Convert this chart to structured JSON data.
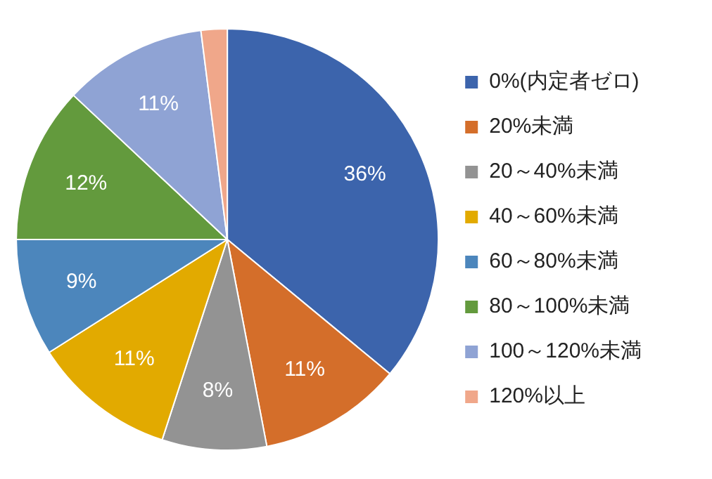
{
  "chart_data": {
    "type": "pie",
    "categories": [
      "0%(内定者ゼロ)",
      "20%未満",
      "20～40%未満",
      "40～60%未満",
      "60～80%未満",
      "80～100%未満",
      "100～120%未満",
      "120%以上"
    ],
    "values": [
      36,
      11,
      8,
      11,
      9,
      12,
      11,
      2
    ],
    "colors": [
      "#3c64ac",
      "#d46e2a",
      "#939393",
      "#e2aa00",
      "#4c86bc",
      "#639a3d",
      "#8fa3d4",
      "#f0a78a"
    ],
    "value_labels": [
      "36%",
      "11%",
      "8%",
      "11%",
      "9%",
      "12%",
      "11%",
      null
    ],
    "legend": "right"
  }
}
